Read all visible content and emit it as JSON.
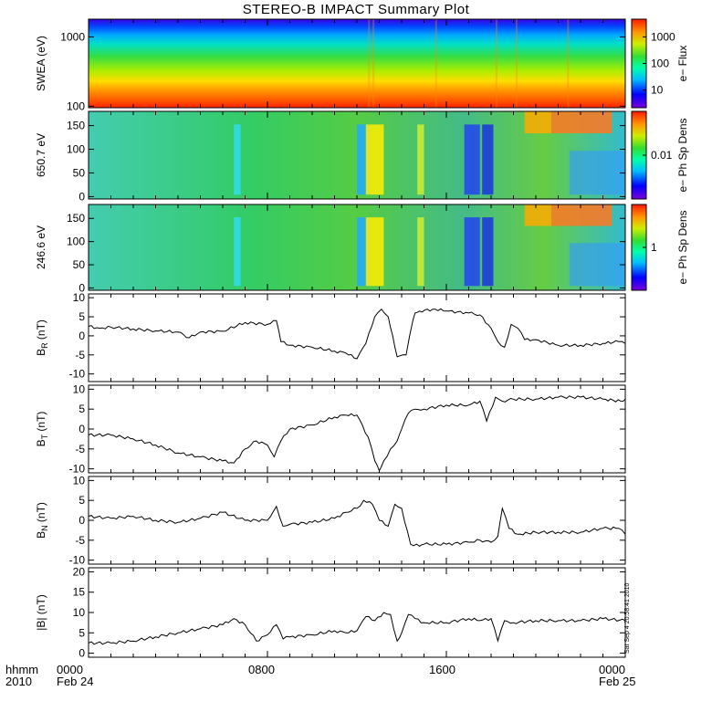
{
  "title": "STEREO-B IMPACT Summary Plot",
  "footer": {
    "left_line1": "hhmm",
    "left_line2": "2010",
    "ticks": [
      "0000",
      "0800",
      "1600",
      "0000"
    ],
    "dates": [
      "Feb 24",
      "Feb 25"
    ]
  },
  "stamp": "Sat Sep  4 20:58:41 2010",
  "chart_data": [
    {
      "type": "heatmap",
      "panel": "swea",
      "ylabel": "SWEA (eV)",
      "yscale": "log",
      "ylim": [
        95,
        1800
      ],
      "yticks": [
        "1000",
        "100"
      ],
      "colorbar": {
        "label": "e− Flux",
        "ticks": [
          "1000",
          "100",
          "10"
        ]
      }
    },
    {
      "type": "heatmap",
      "panel": "pad650",
      "ylabel": "650.7 eV",
      "ylim": [
        -5,
        180
      ],
      "yticks": [
        "150",
        "100",
        "50",
        "0"
      ],
      "colorbar": {
        "label": "e− Ph Sp Dens",
        "ticks": [
          "0.01"
        ]
      }
    },
    {
      "type": "heatmap",
      "panel": "pad246",
      "ylabel": "246.6 eV",
      "ylim": [
        -5,
        180
      ],
      "yticks": [
        "150",
        "100",
        "50",
        "0"
      ],
      "colorbar": {
        "label": "e− Ph Sp Dens",
        "ticks": [
          "1"
        ]
      }
    },
    {
      "type": "line",
      "panel": "br",
      "ylabel": "B_R (nT)",
      "ylim": [
        -12,
        11
      ],
      "yticks": [
        "10",
        "5",
        "0",
        "-5",
        "-10"
      ],
      "x_hours": [
        0,
        0.5,
        1,
        2,
        3,
        4,
        4.5,
        5,
        6,
        7,
        8,
        8.4,
        8.6,
        9,
        10,
        11,
        11.5,
        12,
        12.4,
        12.8,
        13.1,
        13.4,
        13.6,
        13.8,
        14.2,
        14.5,
        14.6,
        14.8,
        15.5,
        16,
        17,
        17.5,
        18,
        18.3,
        18.6,
        18.9,
        19.2,
        19.5,
        20,
        21,
        22,
        23,
        23.7,
        24
      ],
      "y": [
        2.5,
        2,
        2.3,
        1.8,
        1.3,
        1,
        -0.5,
        1,
        1.2,
        3.5,
        3,
        4,
        -1.5,
        -2.5,
        -3,
        -4,
        -4.5,
        -6,
        -2,
        5,
        7,
        5,
        0,
        -5.5,
        -5,
        4,
        6,
        6.5,
        7,
        6.5,
        6,
        5.5,
        2,
        -1.5,
        -3,
        3,
        2,
        -1,
        -1,
        -2.5,
        -2.5,
        -2,
        -1.5,
        -2
      ]
    },
    {
      "type": "line",
      "panel": "bt",
      "ylabel": "B_T (nT)",
      "ylim": [
        -11,
        11
      ],
      "yticks": [
        "10",
        "5",
        "0",
        "-5",
        "-10"
      ],
      "x_hours": [
        0,
        1,
        2,
        3,
        4,
        5,
        6,
        6.5,
        7,
        7.5,
        8,
        8.3,
        8.6,
        9,
        10,
        11,
        11.5,
        12,
        12.5,
        12.8,
        13,
        13.2,
        13.5,
        13.8,
        14,
        14.3,
        14.6,
        15,
        16,
        17,
        17.5,
        17.8,
        18.2,
        18.5,
        19,
        20,
        21,
        22,
        23,
        23.8,
        24
      ],
      "y": [
        -1.5,
        -1.5,
        -2.5,
        -4,
        -6,
        -7,
        -8,
        -8.5,
        -5,
        -3,
        -4,
        -7,
        -3,
        0,
        1,
        3,
        3.5,
        3.5,
        -2,
        -8,
        -10.5,
        -8,
        -5,
        -3,
        0,
        4,
        5,
        5,
        6,
        6,
        7,
        2,
        8,
        7,
        7.5,
        7.5,
        8,
        8,
        7.5,
        7,
        7.5
      ]
    },
    {
      "type": "line",
      "panel": "bn",
      "ylabel": "B_N (nT)",
      "ylim": [
        -11,
        11
      ],
      "yticks": [
        "10",
        "5",
        "0",
        "-5",
        "-10"
      ],
      "x_hours": [
        0,
        1,
        2,
        3,
        4,
        5,
        6,
        7,
        8,
        8.4,
        8.7,
        9,
        10,
        11,
        11.5,
        12,
        12.3,
        12.7,
        13,
        13.4,
        13.7,
        14,
        14.4,
        14.8,
        15,
        16,
        17,
        17.5,
        18,
        18.3,
        18.5,
        18.8,
        19.2,
        20,
        21,
        22,
        23,
        23.7,
        24
      ],
      "y": [
        1,
        0.5,
        1,
        0,
        -0.5,
        0.5,
        2,
        0,
        0,
        3.5,
        -1.5,
        -1,
        -0.5,
        0.5,
        2,
        3,
        5,
        4,
        0,
        -1.5,
        4,
        3,
        -6,
        -6.5,
        -6,
        -6,
        -5.5,
        -5,
        -5.5,
        -4,
        3,
        -2,
        -3.5,
        -3,
        -3,
        -3,
        -2,
        -2,
        -3.5
      ]
    },
    {
      "type": "line",
      "panel": "bmag",
      "ylabel": "|B| (nT)",
      "ylim": [
        -1,
        21
      ],
      "yticks": [
        "20",
        "15",
        "10",
        "5",
        "0"
      ],
      "x_hours": [
        0,
        1,
        2,
        3,
        4,
        5,
        6,
        6.5,
        7,
        7.5,
        8,
        8.4,
        8.7,
        9,
        10,
        11,
        11.5,
        12,
        12.4,
        12.8,
        13.2,
        13.5,
        13.8,
        14,
        14.3,
        14.6,
        15,
        16,
        17,
        17.5,
        18,
        18.3,
        18.6,
        19,
        20,
        21,
        22,
        23,
        24
      ],
      "y": [
        2.5,
        2.5,
        3,
        4,
        5,
        6,
        7,
        8.5,
        7,
        3,
        4.5,
        7,
        3.5,
        4,
        4.5,
        5.5,
        5,
        5.5,
        9,
        8,
        10,
        9.5,
        3,
        5,
        9.5,
        8.5,
        7.5,
        7.5,
        8.5,
        8,
        8.5,
        3,
        8,
        7.5,
        8,
        8,
        8,
        8.5,
        8
      ]
    }
  ]
}
